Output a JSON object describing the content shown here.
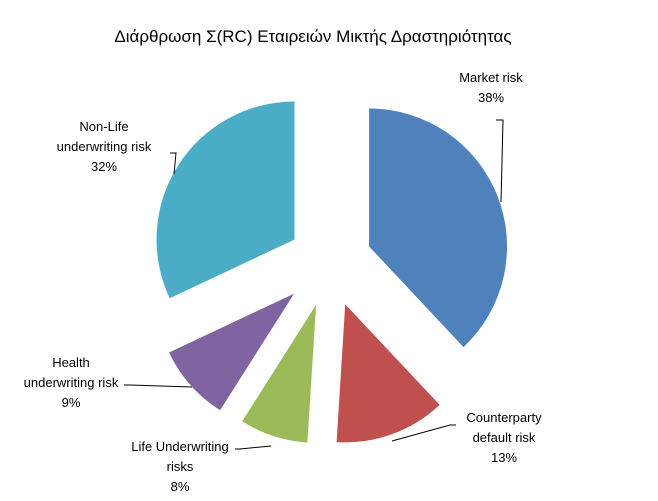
{
  "chart_data": {
    "type": "pie",
    "title": "Διάρθρωση Σ(RC) Εταιρειών Μικτής Δραστηριότητας",
    "exploded": true,
    "legend": "none",
    "slices": [
      {
        "name": "Market risk",
        "label_lines": [
          "Market risk"
        ],
        "pct_label": "38%",
        "value": 38,
        "color": "#4F81BD"
      },
      {
        "name": "Counterparty default risk",
        "label_lines": [
          "Counterparty",
          "default risk"
        ],
        "pct_label": "13%",
        "value": 13,
        "color": "#C0504D"
      },
      {
        "name": "Life Underwriting risks",
        "label_lines": [
          "Life Underwriting",
          "risks"
        ],
        "pct_label": "8%",
        "value": 8,
        "color": "#9BBB59"
      },
      {
        "name": "Health underwriting risk",
        "label_lines": [
          "Health",
          "underwriting risk"
        ],
        "pct_label": "9%",
        "value": 9,
        "color": "#8064A2"
      },
      {
        "name": "Non-Life underwriting risk",
        "label_lines": [
          "Non-Life",
          "underwriting risk"
        ],
        "pct_label": "32%",
        "value": 32,
        "color": "#4BACC6"
      }
    ]
  }
}
